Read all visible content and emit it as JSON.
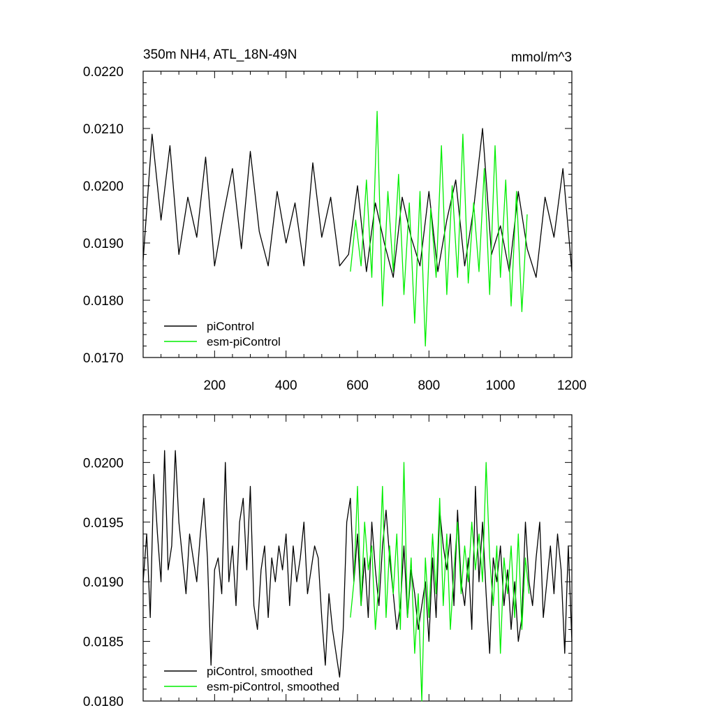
{
  "chart_data": [
    {
      "type": "line",
      "title": "350m NH4, ATL_18N-49N",
      "units": "mmol/m^3",
      "xlim": [
        0,
        1200
      ],
      "ylim": [
        0.017,
        0.022
      ],
      "x_ticks": [
        200,
        400,
        600,
        800,
        1000,
        1200
      ],
      "y_ticks": [
        "0.0170",
        "0.0180",
        "0.0190",
        "0.0200",
        "0.0210",
        "0.0220"
      ],
      "legend": {
        "position": "bottom-left",
        "entries": [
          "piControl",
          "esm-piControl"
        ]
      },
      "series": [
        {
          "name": "piControl",
          "color": "#000000",
          "x": [
            0,
            25,
            50,
            75,
            100,
            125,
            150,
            175,
            200,
            225,
            250,
            275,
            300,
            325,
            350,
            375,
            400,
            425,
            450,
            475,
            500,
            525,
            550,
            575,
            600,
            625,
            650,
            675,
            700,
            725,
            750,
            775,
            800,
            825,
            850,
            875,
            900,
            925,
            950,
            975,
            1000,
            1025,
            1050,
            1075,
            1100,
            1125,
            1150,
            1175,
            1200
          ],
          "y": [
            0.0187,
            0.0209,
            0.0194,
            0.0207,
            0.0188,
            0.0198,
            0.0191,
            0.0205,
            0.0186,
            0.0195,
            0.0203,
            0.0189,
            0.0206,
            0.0192,
            0.0186,
            0.0199,
            0.019,
            0.0197,
            0.0186,
            0.0204,
            0.0191,
            0.0198,
            0.0186,
            0.0188,
            0.02,
            0.0185,
            0.0197,
            0.019,
            0.0184,
            0.0198,
            0.0191,
            0.0186,
            0.0199,
            0.0185,
            0.0194,
            0.0201,
            0.0186,
            0.0196,
            0.021,
            0.0188,
            0.0193,
            0.0185,
            0.0199,
            0.0189,
            0.0184,
            0.0198,
            0.0191,
            0.0203,
            0.0185
          ]
        },
        {
          "name": "esm-piControl",
          "color": "#00ee00",
          "x": [
            580,
            595,
            610,
            625,
            640,
            655,
            670,
            685,
            700,
            715,
            730,
            745,
            760,
            775,
            790,
            805,
            820,
            835,
            850,
            865,
            880,
            895,
            910,
            925,
            940,
            955,
            970,
            985,
            1000,
            1015,
            1030,
            1045,
            1060,
            1075
          ],
          "y": [
            0.0185,
            0.0194,
            0.0186,
            0.0201,
            0.0184,
            0.0213,
            0.0179,
            0.0199,
            0.0185,
            0.0202,
            0.0181,
            0.0197,
            0.0176,
            0.0199,
            0.0172,
            0.0196,
            0.0184,
            0.0207,
            0.0181,
            0.02,
            0.0184,
            0.0209,
            0.0183,
            0.0197,
            0.0185,
            0.0203,
            0.0181,
            0.0207,
            0.0184,
            0.0201,
            0.0179,
            0.0199,
            0.0178,
            0.0195
          ]
        }
      ]
    },
    {
      "type": "line",
      "xlim": [
        0,
        1200
      ],
      "ylim": [
        0.018,
        0.0204
      ],
      "y_ticks": [
        "0.0180",
        "0.0185",
        "0.0190",
        "0.0195",
        "0.0200"
      ],
      "legend": {
        "position": "bottom-left",
        "entries": [
          "piControl, smoothed",
          "esm-piControl, smoothed"
        ]
      },
      "series": [
        {
          "name": "piControl, smoothed",
          "color": "#000000",
          "x": [
            0,
            10,
            20,
            30,
            40,
            50,
            60,
            70,
            80,
            90,
            100,
            110,
            120,
            130,
            140,
            150,
            160,
            170,
            180,
            190,
            200,
            210,
            220,
            230,
            240,
            250,
            260,
            270,
            280,
            290,
            300,
            310,
            320,
            330,
            340,
            350,
            360,
            370,
            380,
            390,
            400,
            410,
            420,
            430,
            440,
            450,
            460,
            470,
            480,
            490,
            500,
            510,
            520,
            530,
            540,
            550,
            560,
            570,
            580,
            590,
            600,
            610,
            620,
            630,
            640,
            650,
            660,
            670,
            680,
            690,
            700,
            710,
            720,
            730,
            740,
            750,
            760,
            770,
            780,
            790,
            800,
            810,
            820,
            830,
            840,
            850,
            860,
            870,
            880,
            890,
            900,
            910,
            920,
            930,
            940,
            950,
            960,
            970,
            980,
            990,
            1000,
            1010,
            1020,
            1030,
            1040,
            1050,
            1060,
            1070,
            1080,
            1090,
            1100,
            1110,
            1120,
            1130,
            1140,
            1150,
            1160,
            1170,
            1180,
            1190,
            1200
          ],
          "y": [
            0.019,
            0.0194,
            0.0187,
            0.0199,
            0.0194,
            0.019,
            0.0201,
            0.0191,
            0.0193,
            0.0201,
            0.0195,
            0.0192,
            0.0189,
            0.0194,
            0.0192,
            0.019,
            0.0194,
            0.0197,
            0.0192,
            0.0183,
            0.0191,
            0.0192,
            0.0189,
            0.02,
            0.019,
            0.0193,
            0.0188,
            0.0195,
            0.0197,
            0.0191,
            0.0198,
            0.0188,
            0.0186,
            0.0191,
            0.0193,
            0.0187,
            0.0192,
            0.019,
            0.0193,
            0.0191,
            0.0194,
            0.0188,
            0.0193,
            0.019,
            0.0192,
            0.0195,
            0.0189,
            0.0191,
            0.0193,
            0.0192,
            0.0187,
            0.0183,
            0.0189,
            0.0186,
            0.0184,
            0.0182,
            0.0186,
            0.0195,
            0.0197,
            0.019,
            0.0194,
            0.0188,
            0.0192,
            0.0187,
            0.0195,
            0.0191,
            0.0188,
            0.0193,
            0.0196,
            0.0192,
            0.0189,
            0.0186,
            0.0188,
            0.0193,
            0.0187,
            0.0191,
            0.0189,
            0.0186,
            0.0188,
            0.019,
            0.0185,
            0.0192,
            0.0187,
            0.0196,
            0.0193,
            0.0191,
            0.0194,
            0.0188,
            0.0196,
            0.019,
            0.0188,
            0.0192,
            0.0186,
            0.0198,
            0.019,
            0.0195,
            0.0189,
            0.0184,
            0.0192,
            0.019,
            0.0193,
            0.0188,
            0.0191,
            0.0186,
            0.019,
            0.0185,
            0.0187,
            0.0195,
            0.019,
            0.0188,
            0.0192,
            0.0195,
            0.0187,
            0.019,
            0.0193,
            0.0189,
            0.0194,
            0.0191,
            0.0184,
            0.0193,
            0.0185
          ]
        },
        {
          "name": "esm-piControl, smoothed",
          "color": "#00ee00",
          "x": [
            580,
            590,
            600,
            610,
            620,
            630,
            640,
            650,
            660,
            670,
            680,
            690,
            700,
            710,
            720,
            730,
            740,
            750,
            760,
            770,
            780,
            790,
            800,
            810,
            820,
            830,
            840,
            850,
            860,
            870,
            880,
            890,
            900,
            910,
            920,
            930,
            940,
            950,
            960,
            970,
            980,
            990,
            1000,
            1010,
            1020,
            1030,
            1040,
            1050,
            1060,
            1070,
            1080
          ],
          "y": [
            0.0187,
            0.019,
            0.0198,
            0.0188,
            0.0195,
            0.0191,
            0.0193,
            0.0186,
            0.019,
            0.0198,
            0.0187,
            0.0193,
            0.0189,
            0.0194,
            0.0186,
            0.02,
            0.0187,
            0.0192,
            0.0184,
            0.0189,
            0.018,
            0.0192,
            0.0187,
            0.0194,
            0.0189,
            0.0197,
            0.0188,
            0.0194,
            0.0186,
            0.0191,
            0.0195,
            0.0189,
            0.0193,
            0.019,
            0.0195,
            0.0191,
            0.0194,
            0.019,
            0.02,
            0.0192,
            0.0188,
            0.0193,
            0.0184,
            0.0192,
            0.0189,
            0.0193,
            0.0187,
            0.0194,
            0.0186,
            0.0192,
            0.0189
          ]
        }
      ]
    }
  ]
}
